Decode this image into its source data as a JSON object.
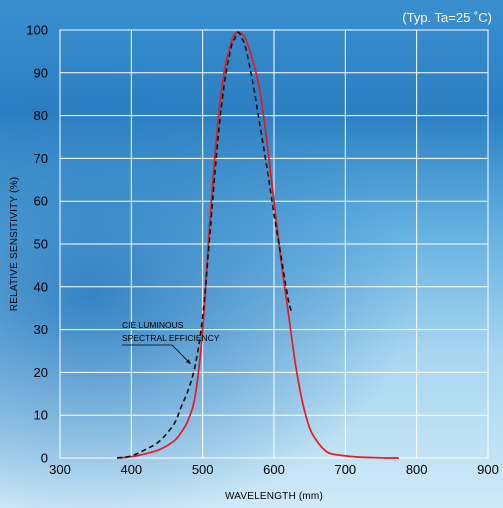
{
  "chart_data": {
    "type": "line",
    "title": "",
    "subtitle": "(Typ. Ta=25 ˚C)",
    "xlabel": "WAVELENGTH (mm)",
    "ylabel": "RELATIVE SENSITIVITY (%)",
    "xlim": [
      300,
      900
    ],
    "ylim": [
      0,
      100
    ],
    "xticks": [
      "300",
      "400",
      "500",
      "600",
      "700",
      "800",
      "900"
    ],
    "yticks": [
      "0",
      "10",
      "20",
      "30",
      "40",
      "50",
      "60",
      "70",
      "80",
      "90",
      "100"
    ],
    "grid": true,
    "colors": {
      "sensor": "#e8191f",
      "cie": "#111111",
      "grid": "#ffffff"
    },
    "series": [
      {
        "style": "solid",
        "x": [
          380,
          400,
          420,
          440,
          460,
          470,
          480,
          490,
          500,
          510,
          520,
          530,
          540,
          545,
          550,
          555,
          560,
          570,
          580,
          590,
          600,
          610,
          620,
          630,
          640,
          650,
          660,
          670,
          680,
          700,
          720,
          740,
          760,
          775
        ],
        "y": [
          0,
          0.3,
          1,
          2,
          4,
          6,
          9,
          15,
          30,
          55,
          76,
          90,
          97,
          99,
          99.5,
          99,
          98,
          93,
          86,
          74,
          60,
          46,
          34,
          22,
          13,
          7,
          4,
          2,
          1,
          0.5,
          0.2,
          0.1,
          0,
          0
        ]
      },
      {
        "style": "dashed",
        "x": [
          380,
          400,
          420,
          440,
          460,
          470,
          480,
          490,
          500,
          510,
          520,
          530,
          540,
          545,
          550,
          555,
          560,
          570,
          580,
          590,
          600,
          610,
          620,
          625
        ],
        "y": [
          0,
          0.5,
          2,
          4,
          8,
          12,
          16,
          22,
          33,
          52,
          72,
          87,
          96,
          98,
          99.5,
          98,
          96,
          88,
          78,
          68,
          57,
          47,
          37,
          34
        ]
      }
    ],
    "annotations": [
      {
        "text": "CIE LUMINOUS",
        "x": 483,
        "y": 22,
        "target": "cie"
      },
      {
        "text": "SPECTRAL EFFICIENCY",
        "x": 483,
        "y": 22,
        "target": "cie"
      }
    ]
  }
}
